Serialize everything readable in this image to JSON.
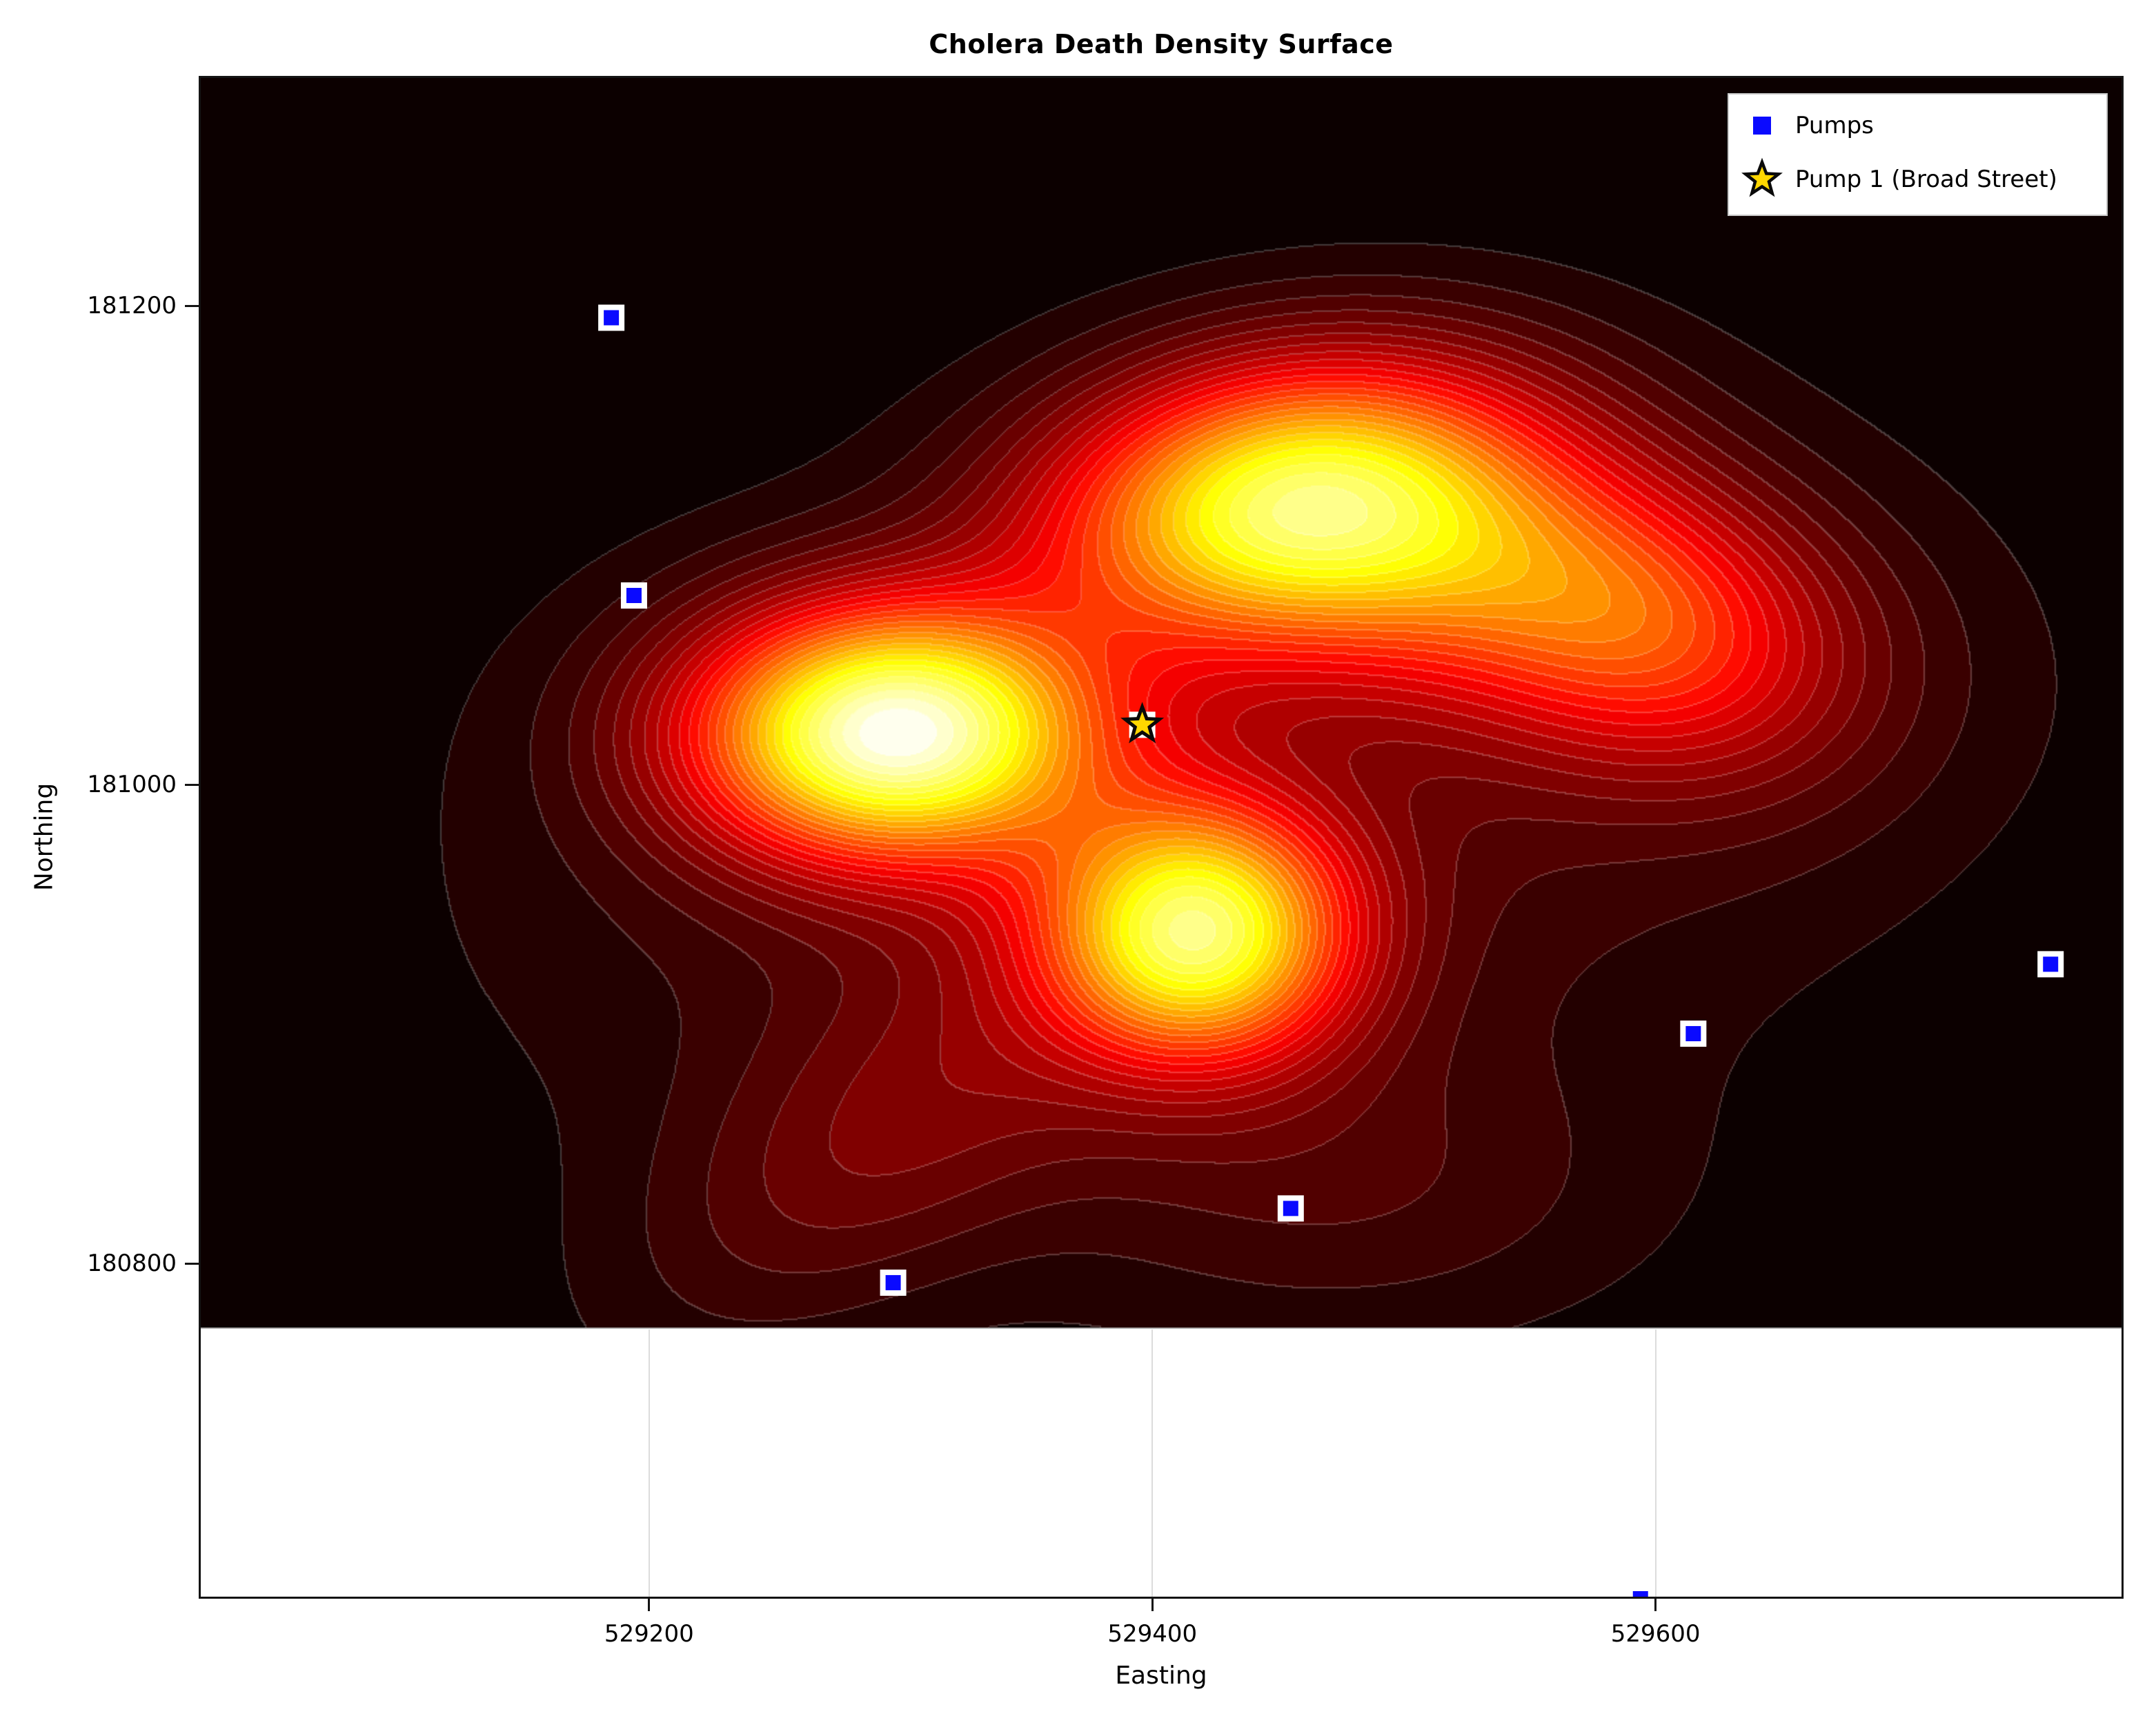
{
  "title": "Cholera Death Density Surface",
  "axes": {
    "xlabel": "Easting",
    "ylabel": "Northing",
    "x_ticks": [
      529200,
      529400,
      529600
    ],
    "y_ticks": [
      180800,
      181000,
      181200
    ]
  },
  "legend": {
    "items": [
      {
        "label": "Pumps",
        "marker": "blue-square-icon"
      },
      {
        "label": "Pump 1 (Broad Street)",
        "marker": "gold-star-icon"
      }
    ]
  },
  "colors": {
    "pump_blue": "#0A0AFF",
    "pump_edge": "#FFFFFF",
    "star_fill": "#FFD700",
    "star_edge": "#0A0A0A",
    "legend_border": "#C9C9C9",
    "grid": "#DCDCDC",
    "spine": "#141414",
    "surface_edge_line": "#B5B5B5",
    "text": "#000000",
    "background": "#FFFFFF"
  },
  "chart_data": {
    "type": "heatmap",
    "subtype": "filled-contour-density",
    "title": "Cholera Death Density Surface",
    "xlabel": "Easting",
    "ylabel": "Northing",
    "xlim": [
      529021,
      529786
    ],
    "ylim": [
      180660,
      181296
    ],
    "x_ticks": [
      529200,
      529400,
      529600
    ],
    "y_ticks": [
      180800,
      181000,
      181200
    ],
    "grid": "on",
    "legend_position": "upper right",
    "colormap": "hot",
    "levels": 30,
    "surface_extent": {
      "easting": [
        529021,
        529786
      ],
      "northing": [
        180773,
        181296
      ]
    },
    "density_components": [
      {
        "easting": 529297,
        "northing": 181022,
        "sigma_e": 55,
        "sigma_n": 36,
        "amplitude": 1.15,
        "rot_deg": 0
      },
      {
        "easting": 529340,
        "northing": 180960,
        "sigma_e": 150,
        "sigma_n": 95,
        "amplitude": 0.12,
        "rot_deg": 0
      },
      {
        "easting": 529293,
        "northing": 180852,
        "sigma_e": 80,
        "sigma_n": 40,
        "amplitude": 0.16,
        "rot_deg": 38
      },
      {
        "easting": 529454,
        "northing": 181119,
        "sigma_e": 68,
        "sigma_n": 40,
        "amplitude": 0.86,
        "rot_deg": 10
      },
      {
        "easting": 529540,
        "northing": 181085,
        "sigma_e": 80,
        "sigma_n": 40,
        "amplitude": 0.35,
        "rot_deg": -12
      },
      {
        "easting": 529600,
        "northing": 181063,
        "sigma_e": 55,
        "sigma_n": 40,
        "amplitude": 0.28,
        "rot_deg": -25
      },
      {
        "easting": 529418,
        "northing": 180938,
        "sigma_e": 42,
        "sigma_n": 37,
        "amplitude": 0.95,
        "rot_deg": 0
      },
      {
        "easting": 529480,
        "northing": 180830,
        "sigma_e": 85,
        "sigma_n": 45,
        "amplitude": 0.1,
        "rot_deg": 0
      },
      {
        "easting": 529560,
        "northing": 181040,
        "sigma_e": 130,
        "sigma_n": 90,
        "amplitude": 0.1,
        "rot_deg": 0
      }
    ],
    "pumps": [
      {
        "id": 1,
        "easting": 529396,
        "northing": 181025,
        "note": "Broad Street"
      },
      {
        "id": 2,
        "easting": 529194,
        "northing": 181079
      },
      {
        "id": 3,
        "easting": 529185,
        "northing": 181195
      },
      {
        "id": 4,
        "easting": 529757,
        "northing": 180925
      },
      {
        "id": 5,
        "easting": 529615,
        "northing": 180896
      },
      {
        "id": 6,
        "easting": 529455,
        "northing": 180823
      },
      {
        "id": 7,
        "easting": 529594,
        "northing": 180660
      },
      {
        "id": 8,
        "easting": 529297,
        "northing": 180792
      }
    ],
    "broad_street_pump": {
      "easting": 529396,
      "northing": 181025,
      "label": "Pump 1 (Broad Street)"
    }
  }
}
